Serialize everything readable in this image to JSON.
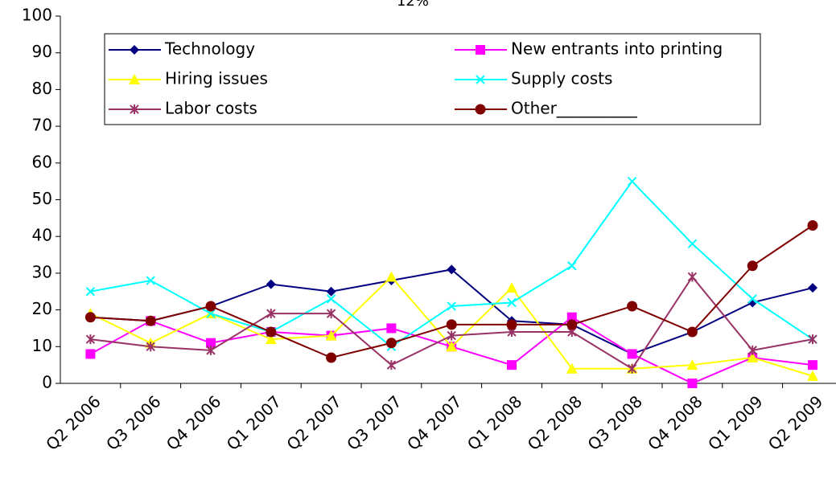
{
  "chart_data": {
    "type": "line",
    "title": "12%",
    "categories": [
      "Q2 2006",
      "Q3 2006",
      "Q4 2006",
      "Q1 2007",
      "Q2 2007",
      "Q3 2007",
      "Q4 2007",
      "Q1 2008",
      "Q2 2008",
      "Q3 2008",
      "Q4 2008",
      "Q1 2009",
      "Q2 2009"
    ],
    "series": [
      {
        "name": "Technology",
        "color": "#000080",
        "marker": "diamond",
        "values": [
          18,
          17,
          21,
          27,
          25,
          28,
          31,
          17,
          16,
          8,
          14,
          22,
          26
        ]
      },
      {
        "name": "New entrants into printing",
        "color": "#ff00ff",
        "marker": "square",
        "values": [
          8,
          17,
          11,
          14,
          13,
          15,
          10,
          5,
          18,
          8,
          0,
          7,
          5
        ]
      },
      {
        "name": "Hiring issues",
        "color": "#ffff00",
        "marker": "triangle",
        "values": [
          19,
          11,
          19,
          12,
          13,
          29,
          10,
          26,
          4,
          4,
          5,
          7,
          2
        ]
      },
      {
        "name": "Supply costs",
        "color": "#00ffff",
        "marker": "x",
        "values": [
          25,
          28,
          19,
          14,
          23,
          10,
          21,
          22,
          32,
          55,
          38,
          23,
          12
        ]
      },
      {
        "name": "Labor costs",
        "color": "#993366",
        "marker": "star",
        "values": [
          12,
          10,
          9,
          19,
          19,
          5,
          13,
          14,
          14,
          4,
          29,
          9,
          12
        ]
      },
      {
        "name": "Other__________",
        "color": "#800000",
        "marker": "circle",
        "values": [
          18,
          17,
          21,
          14,
          7,
          11,
          16,
          16,
          16,
          21,
          14,
          32,
          43
        ]
      }
    ],
    "ylim": [
      0,
      100
    ],
    "yticks": [
      0,
      10,
      20,
      30,
      40,
      50,
      60,
      70,
      80,
      90,
      100
    ],
    "grid": false,
    "legend": "top"
  }
}
